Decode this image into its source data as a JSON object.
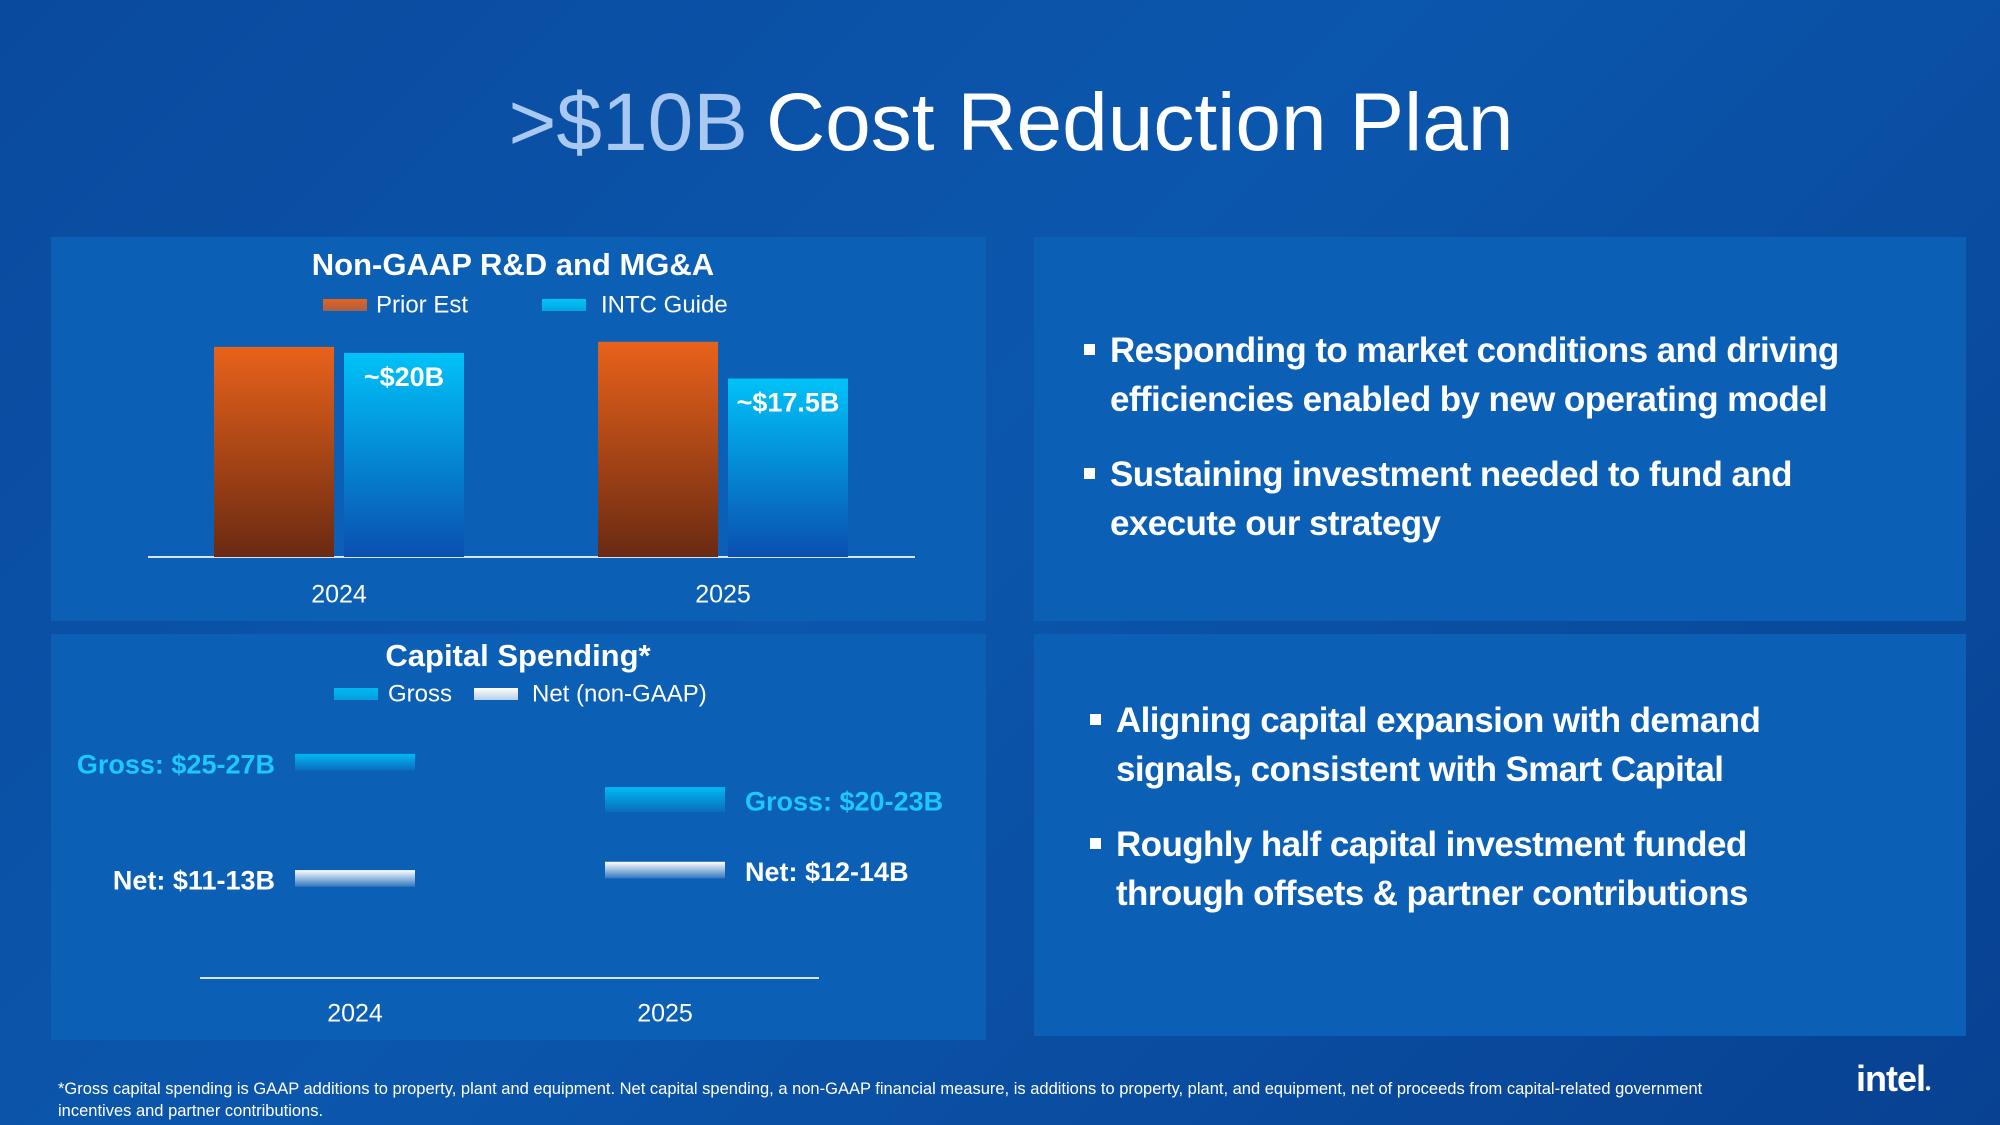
{
  "title": {
    "highlight": ">$10B",
    "text": "Cost Reduction Plan"
  },
  "chart_data": [
    {
      "type": "bar",
      "title": "Non-GAAP R&D and MG&A",
      "categories": [
        "2024",
        "2025"
      ],
      "series": [
        {
          "name": "Prior Est",
          "color": "#e8621b",
          "values": [
            20.6,
            21.1
          ]
        },
        {
          "name": "INTC Guide",
          "color": "#00c3f8",
          "values": [
            20,
            17.5
          ],
          "value_labels": [
            "~$20B",
            "~$17.5B"
          ]
        }
      ]
    },
    {
      "type": "range_bar",
      "title": "Capital Spending*",
      "categories": [
        "2024",
        "2025"
      ],
      "series": [
        {
          "name": "Gross",
          "color": "#00b9f2",
          "label_color": "#1cc8ff",
          "low": [
            25,
            20
          ],
          "high": [
            27,
            23
          ],
          "value_labels": [
            "Gross: $25-27B",
            "Gross: $20-23B"
          ]
        },
        {
          "name": "Net (non-GAAP)",
          "color": "#ffffff",
          "label_color": "#ffffff",
          "low": [
            11,
            12
          ],
          "high": [
            13,
            14
          ],
          "value_labels": [
            "Net: $11-13B",
            "Net: $12-14B"
          ]
        }
      ]
    }
  ],
  "panels": [
    [
      [
        "Responding to market conditions and driving",
        "efficiencies enabled by new operating model"
      ],
      [
        "Sustaining investment needed to fund and",
        "execute our strategy"
      ]
    ],
    [
      [
        "Aligning capital expansion with demand",
        "signals, consistent with Smart Capital"
      ],
      [
        "Roughly half capital investment funded",
        "through offsets & partner contributions"
      ]
    ]
  ],
  "footnote": "*Gross capital spending is GAAP additions to property, plant and equipment. Net capital spending, a non-GAAP financial measure, is additions to property, plant, and equipment, net of proceeds from capital-related government incentives and partner contributions.",
  "logo": "intel"
}
